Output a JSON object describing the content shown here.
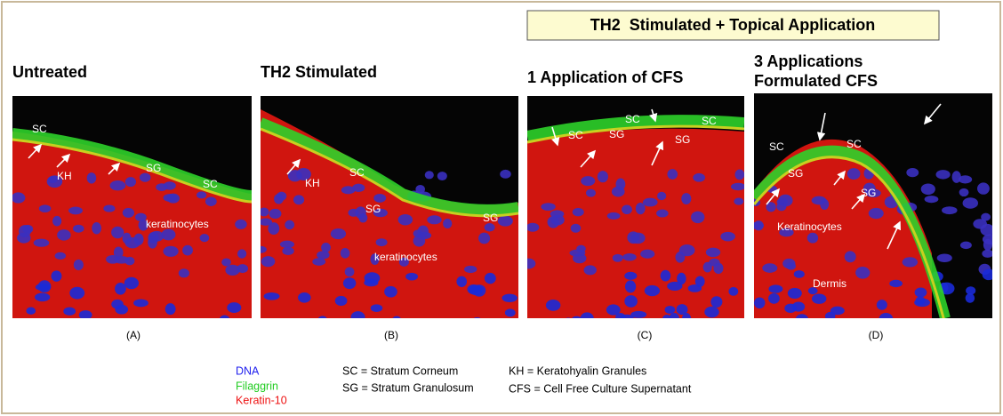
{
  "banner": "TH2  Stimulated + Topical Application",
  "panels": [
    {
      "title": [
        "Untreated"
      ],
      "caption": "(A)",
      "labels": [
        "SC",
        "KH",
        "SG",
        "SC",
        "keratinocytes"
      ]
    },
    {
      "title": [
        "TH2 Stimulated"
      ],
      "caption": "(B)",
      "labels": [
        "KH",
        "SC",
        "SG",
        "SG",
        "keratinocytes"
      ]
    },
    {
      "title": [
        "1 Application of CFS"
      ],
      "caption": "(C)",
      "labels": [
        "SC",
        "SG",
        "SC",
        "SC",
        "SG"
      ]
    },
    {
      "title": [
        "3 Applications",
        "Formulated CFS"
      ],
      "caption": "(D)",
      "labels": [
        "SC",
        "SG",
        "SC",
        "SG",
        "Keratinocytes",
        "Dermis"
      ]
    }
  ],
  "legend": {
    "stains": [
      "DNA",
      "Filaggrin",
      "Keratin-10"
    ],
    "abbreviations": [
      "SC = Stratum Corneum",
      "SG = Stratum Granulosum",
      "KH = Keratohyalin Granules",
      "CFS = Cell Free Culture Supernatant"
    ]
  }
}
